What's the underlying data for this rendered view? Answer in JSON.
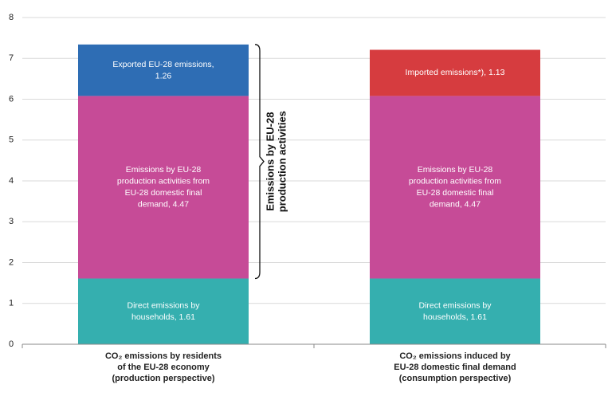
{
  "chart_data": {
    "type": "stacked-bar",
    "categories": [
      "CO₂ emissions by residents\nof the EU-28 economy\n(production perspective)",
      "CO₂ emissions induced by\nEU-28 domestic final demand\n(consumption perspective)"
    ],
    "series": [
      {
        "color": "#35afaf",
        "values": [
          1.61,
          1.61
        ],
        "value_labels": [
          "Direct emissions by\nhouseholds, 1.61",
          "Direct emissions by\nhouseholds, 1.61"
        ]
      },
      {
        "color": "#c64b97",
        "values": [
          4.47,
          4.47
        ],
        "value_labels": [
          "Emissions by EU-28\nproduction activities from\nEU-28 domestic final\ndemand, 4.47",
          "Emissions by EU-28\nproduction activities from\nEU-28 domestic final\ndemand, 4.47"
        ]
      },
      {
        "color": "#2e6db4",
        "values": [
          1.26,
          null
        ],
        "value_labels": [
          "Exported EU-28 emissions,\n1.26",
          null
        ]
      },
      {
        "color": "#d63c3f",
        "values": [
          null,
          1.13
        ],
        "value_labels": [
          null,
          "Imported emissions*), 1.13"
        ]
      }
    ],
    "annotation": "Emissions by EU-28\nproduction activities",
    "ylim": [
      0,
      8
    ],
    "yticks": [
      0,
      1,
      2,
      3,
      4,
      5,
      6,
      7,
      8
    ],
    "grid": true
  }
}
